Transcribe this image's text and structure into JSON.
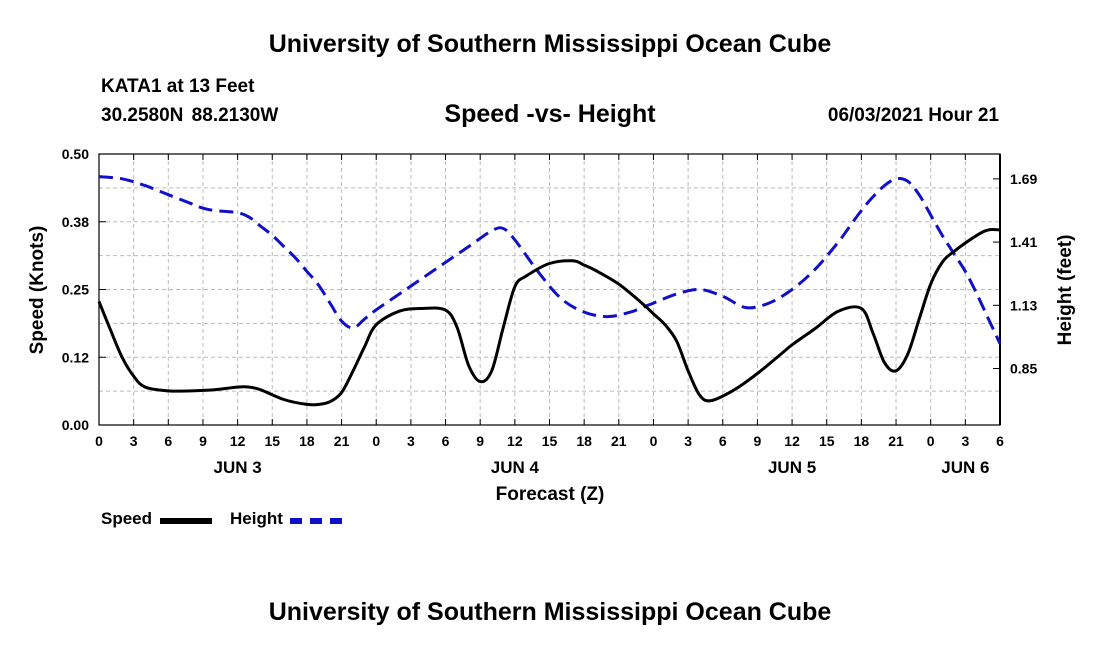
{
  "header": {
    "title": "University of Southern Mississippi Ocean Cube",
    "station": "KATA1 at 13 Feet",
    "coordinates": "30.2580N  88.2130W",
    "subtitle": "Speed -vs- Height",
    "datetime": "06/03/2021 Hour 21"
  },
  "footer": {
    "title": "University of Southern Mississippi Ocean Cube"
  },
  "legend": {
    "speed_label": "Speed",
    "height_label": "Height"
  },
  "chart_data": {
    "type": "line",
    "title": "Speed -vs- Height",
    "xlabel": "Forecast (Z)",
    "ylabel": "Speed (Knots)",
    "ylabel_right": "Height (feet)",
    "x_range": [
      0,
      78
    ],
    "x_step_hours": 3,
    "x_ticks": [
      "0",
      "3",
      "6",
      "9",
      "12",
      "15",
      "18",
      "21",
      "0",
      "3",
      "6",
      "9",
      "12",
      "15",
      "18",
      "21",
      "0",
      "3",
      "6",
      "9",
      "12",
      "15",
      "18",
      "21",
      "0",
      "3",
      "6"
    ],
    "day_labels": [
      {
        "label": "JUN 3",
        "hour": 12
      },
      {
        "label": "JUN 4",
        "hour": 36
      },
      {
        "label": "JUN 5",
        "hour": 60
      },
      {
        "label": "JUN 6",
        "hour": 75
      }
    ],
    "ylim": [
      0,
      0.5
    ],
    "y_ticks": [
      "0.00",
      "0.12",
      "0.25",
      "0.38",
      "0.50"
    ],
    "ylim_right": [
      0.6,
      1.8
    ],
    "y_ticks_right": [
      "0.85",
      "1.13",
      "1.41",
      "1.69"
    ],
    "grid": true,
    "colors": {
      "speed": "#000000",
      "height": "#1010c8",
      "grid": "#bbbbbb"
    },
    "series": [
      {
        "name": "Speed",
        "axis": "left",
        "x": [
          0,
          1,
          2,
          3,
          4,
          6,
          8,
          10,
          12,
          13,
          14,
          16,
          18,
          19,
          20,
          21,
          22,
          23,
          24,
          26,
          28,
          30,
          31,
          32,
          33,
          34,
          35,
          36,
          37,
          39,
          41,
          42,
          43,
          45,
          47,
          48,
          49,
          50,
          51,
          52,
          53,
          55,
          57,
          59,
          60,
          62,
          64,
          66,
          67,
          68,
          69,
          70,
          71,
          72,
          73,
          74,
          76,
          77,
          78
        ],
        "values": [
          0.228,
          0.175,
          0.125,
          0.09,
          0.07,
          0.063,
          0.063,
          0.065,
          0.07,
          0.07,
          0.065,
          0.047,
          0.038,
          0.038,
          0.043,
          0.06,
          0.1,
          0.145,
          0.185,
          0.21,
          0.215,
          0.212,
          0.18,
          0.11,
          0.08,
          0.1,
          0.18,
          0.255,
          0.275,
          0.298,
          0.303,
          0.295,
          0.285,
          0.26,
          0.225,
          0.205,
          0.185,
          0.155,
          0.1,
          0.055,
          0.045,
          0.065,
          0.095,
          0.13,
          0.148,
          0.178,
          0.21,
          0.215,
          0.17,
          0.115,
          0.1,
          0.13,
          0.195,
          0.26,
          0.3,
          0.32,
          0.35,
          0.36,
          0.36
        ]
      },
      {
        "name": "Height",
        "axis": "right",
        "x": [
          0,
          2,
          4,
          6,
          8,
          9,
          10,
          12,
          13,
          14,
          15,
          16,
          17,
          18,
          19,
          20,
          21,
          22,
          23,
          24,
          26,
          28,
          30,
          32,
          34,
          35,
          36,
          38,
          40,
          42,
          44,
          46,
          47,
          48,
          50,
          52,
          54,
          56,
          58,
          60,
          62,
          64,
          65,
          66,
          67,
          68,
          69,
          70,
          71,
          72,
          73,
          74,
          75,
          76,
          77,
          78
        ],
        "values": [
          1.7,
          1.69,
          1.66,
          1.62,
          1.58,
          1.56,
          1.55,
          1.54,
          1.52,
          1.48,
          1.44,
          1.39,
          1.34,
          1.28,
          1.22,
          1.14,
          1.06,
          1.03,
          1.07,
          1.11,
          1.18,
          1.25,
          1.32,
          1.39,
          1.46,
          1.47,
          1.42,
          1.28,
          1.16,
          1.1,
          1.08,
          1.1,
          1.12,
          1.14,
          1.18,
          1.2,
          1.17,
          1.12,
          1.14,
          1.2,
          1.29,
          1.41,
          1.48,
          1.55,
          1.61,
          1.66,
          1.69,
          1.68,
          1.62,
          1.53,
          1.44,
          1.36,
          1.28,
          1.18,
          1.07,
          0.96
        ]
      }
    ]
  }
}
